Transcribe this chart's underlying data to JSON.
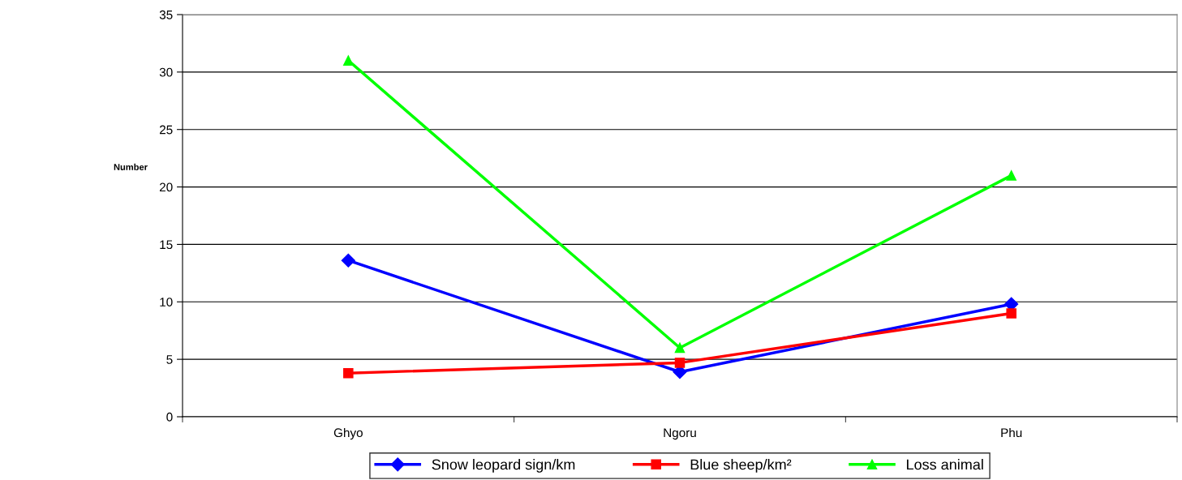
{
  "chart_data": {
    "type": "line",
    "ylabel": "Number",
    "categories": [
      "Ghyo",
      "Ngoru",
      "Phu"
    ],
    "series": [
      {
        "name": "Snow leopard sign/km",
        "color": "#0000ff",
        "marker": "diamond",
        "values": [
          13.6,
          3.9,
          9.8
        ]
      },
      {
        "name": "Blue sheep/km²",
        "color": "#ff0000",
        "marker": "square",
        "values": [
          3.8,
          4.7,
          9.0
        ]
      },
      {
        "name": "Loss animal",
        "color": "#00ff00",
        "marker": "triangle",
        "values": [
          31,
          6,
          21
        ]
      }
    ],
    "ylim": [
      0,
      35
    ],
    "yticks": [
      0,
      5,
      10,
      15,
      20,
      25,
      30,
      35
    ],
    "grid": "y",
    "legend": "bottom",
    "line_style": "solid"
  }
}
